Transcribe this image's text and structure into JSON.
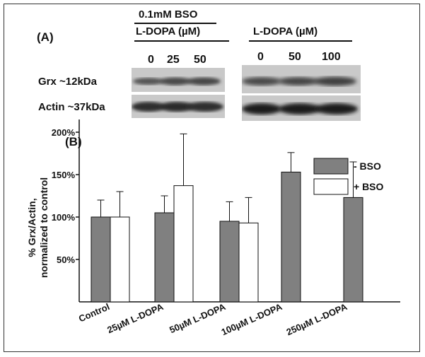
{
  "panel_a": {
    "label": "(A)",
    "left_group": {
      "condition": "0.1mM BSO",
      "header": "L-DOPA (µM)",
      "lanes": [
        "0",
        "25",
        "50"
      ]
    },
    "right_group": {
      "header": "L-DOPA (µM)",
      "lanes": [
        "0",
        "50",
        "100"
      ]
    },
    "rows": [
      "Grx ~12kDa",
      "Actin ~37kDa"
    ]
  },
  "panel_b": {
    "label": "(B)",
    "colors": {
      "minus_bso": "#808080",
      "plus_bso": "#ffffff",
      "axis": "#111111"
    }
  },
  "chart_data": {
    "type": "bar",
    "ylabel": "% Grx/Actin, normalized to control",
    "ylabel_lines": [
      "% Grx/Actin,",
      "normalized to control"
    ],
    "yticks": [
      "50%",
      "100%",
      "150%",
      "200%"
    ],
    "ytick_values": [
      50,
      100,
      150,
      200
    ],
    "ylim": [
      0,
      215
    ],
    "categories": [
      "Control",
      "25µM L-DOPA",
      "50µM L-DOPA",
      "100µM L-DOPA",
      "250µM L-DOPA"
    ],
    "series": [
      {
        "name": "- BSO",
        "values": [
          100,
          105,
          95,
          153,
          123
        ],
        "errors": [
          20,
          20,
          23,
          23,
          42
        ],
        "color": "#808080"
      },
      {
        "name": "+ BSO",
        "values": [
          100,
          137,
          93,
          null,
          null
        ],
        "errors": [
          30,
          61,
          30,
          null,
          null
        ],
        "color": "#ffffff"
      }
    ],
    "legend": "top-right"
  }
}
